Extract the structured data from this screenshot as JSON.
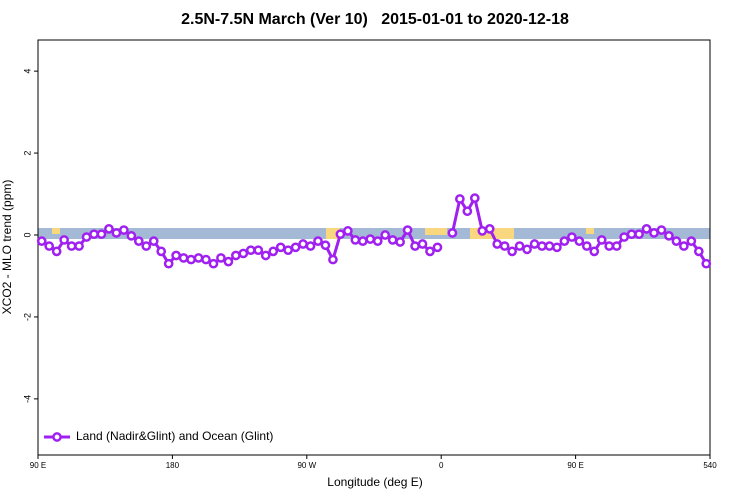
{
  "chart_data": {
    "type": "line",
    "title": "2.5N-7.5N March (Ver 10)   2015-01-01 to 2020-12-18",
    "x_label": "Longitude (deg E)",
    "y_label": "XCO2 - MLO trend (ppm)",
    "x": [
      92.5,
      97.5,
      102.5,
      107.5,
      112.5,
      117.5,
      122.5,
      127.5,
      132.5,
      137.5,
      142.5,
      147.5,
      152.5,
      157.5,
      162.5,
      167.5,
      172.5,
      177.5,
      182.5,
      187.5,
      192.5,
      197.5,
      202.5,
      207.5,
      212.5,
      217.5,
      222.5,
      227.5,
      232.5,
      237.5,
      242.5,
      247.5,
      252.5,
      257.5,
      262.5,
      267.5,
      272.5,
      277.5,
      282.5,
      287.5,
      292.5,
      297.5,
      302.5,
      307.5,
      312.5,
      317.5,
      322.5,
      327.5,
      332.5,
      337.5,
      342.5,
      347.5,
      352.5,
      357.5,
      362.5,
      367.5,
      372.5,
      377.5,
      382.5,
      387.5,
      392.5,
      397.5,
      402.5,
      407.5,
      412.5,
      417.5,
      422.5,
      427.5,
      432.5,
      437.5,
      442.5,
      447.5,
      452.5,
      457.5,
      462.5,
      467.5,
      472.5,
      477.5,
      482.5,
      487.5,
      492.5,
      497.5,
      502.5,
      507.5,
      512.5,
      517.5,
      522.5,
      527.5,
      532.5,
      537.5
    ],
    "series": [
      {
        "name": "Land (Nadir&Glint) and Ocean (Glint)",
        "color": "#a020f0",
        "values": [
          -0.15,
          -0.27,
          -0.4,
          -0.12,
          -0.27,
          -0.27,
          -0.05,
          0.02,
          0.02,
          0.15,
          0.05,
          0.12,
          -0.02,
          -0.15,
          -0.27,
          -0.15,
          -0.4,
          -0.7,
          -0.5,
          -0.56,
          -0.6,
          -0.56,
          -0.6,
          -0.7,
          -0.56,
          -0.65,
          -0.5,
          -0.45,
          -0.37,
          -0.37,
          -0.5,
          -0.4,
          -0.3,
          -0.37,
          -0.3,
          -0.22,
          -0.27,
          -0.15,
          -0.25,
          -0.6,
          0.02,
          0.1,
          -0.12,
          -0.15,
          -0.1,
          -0.15,
          0,
          -0.12,
          -0.17,
          0.12,
          -0.27,
          -0.22,
          -0.4,
          -0.3,
          null,
          0.05,
          0.88,
          0.58,
          0.9,
          0.1,
          0.15,
          -0.22,
          -0.27,
          -0.4,
          -0.27,
          -0.35,
          -0.22,
          -0.27,
          -0.27,
          -0.3,
          -0.15,
          -0.05,
          -0.15,
          -0.27,
          -0.4,
          -0.12,
          -0.27,
          -0.27,
          -0.05,
          0.02,
          0.02,
          0.15,
          0.05,
          0.12,
          -0.02,
          -0.15,
          -0.27,
          -0.15,
          -0.4,
          -0.7
        ]
      }
    ],
    "xlim": [
      90,
      540
    ],
    "xticks": [
      {
        "value": 90,
        "label": "90 E"
      },
      180,
      {
        "value": 270,
        "label": "90 W"
      },
      {
        "value": 360,
        "label": "0"
      },
      {
        "value": 450,
        "label": "90 E"
      },
      540
    ],
    "ylim": [
      -5.37,
      4.76
    ],
    "yticks": [
      -4,
      -2,
      0,
      2,
      4
    ],
    "legend": "bottom-left"
  }
}
